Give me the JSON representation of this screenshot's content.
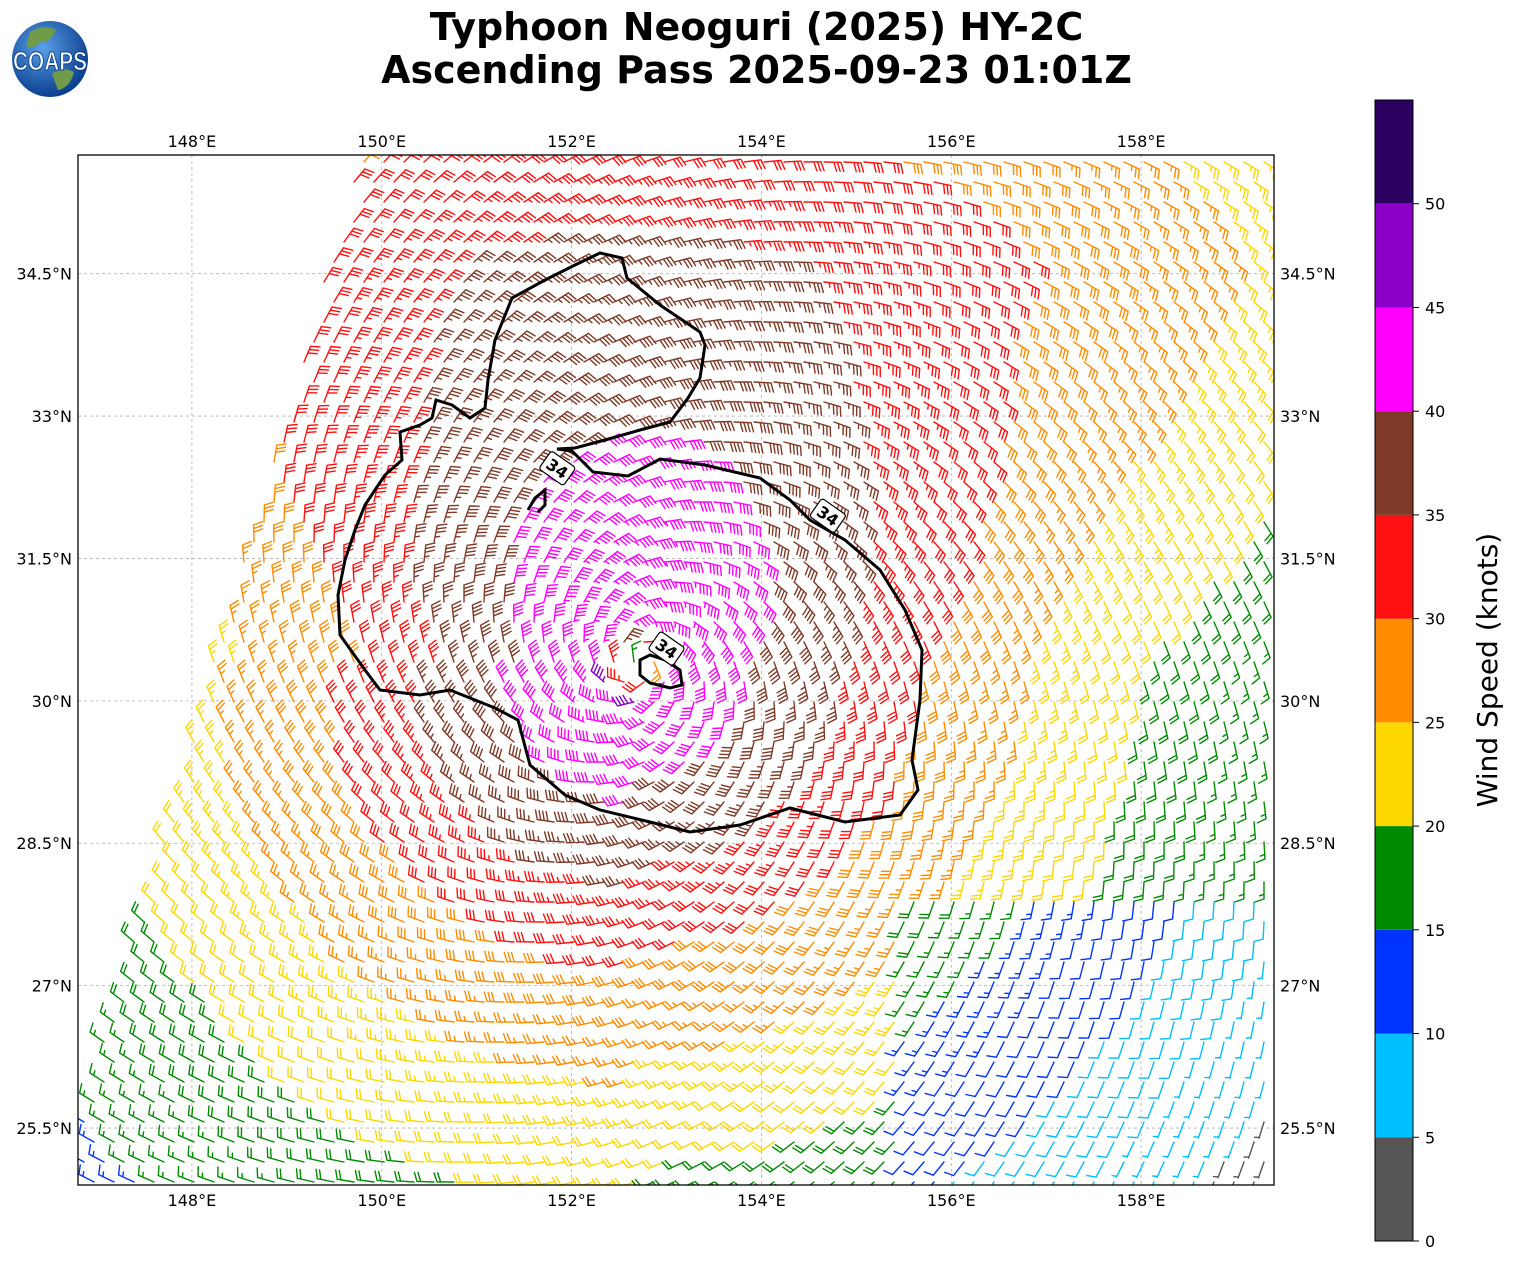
{
  "title_line1": "Typhoon Neoguri (2025) HY-2C",
  "title_line2": "Ascending Pass 2025-09-23 01:01Z",
  "logo_text": "COAPS",
  "map": {
    "lon_range": [
      146.8,
      159.4
    ],
    "lat_range": [
      24.9,
      35.75
    ],
    "lon_ticks": [
      {
        "value": 148,
        "label": "148°E"
      },
      {
        "value": 150,
        "label": "150°E"
      },
      {
        "value": 152,
        "label": "152°E"
      },
      {
        "value": 154,
        "label": "154°E"
      },
      {
        "value": 156,
        "label": "156°E"
      },
      {
        "value": 158,
        "label": "158°E"
      }
    ],
    "lat_ticks": [
      {
        "value": 34.5,
        "label": "34.5°N"
      },
      {
        "value": 33,
        "label": "33°N"
      },
      {
        "value": 31.5,
        "label": "31.5°N"
      },
      {
        "value": 30,
        "label": "30°N"
      },
      {
        "value": 28.5,
        "label": "28.5°N"
      },
      {
        "value": 27,
        "label": "27°N"
      },
      {
        "value": 25.5,
        "label": "25.5°N"
      }
    ],
    "gridlines": true,
    "storm_center": {
      "lon": 152.7,
      "lat": 30.4
    },
    "contour_label": "34",
    "contour_label_positions": [
      {
        "lon": 151.85,
        "lat": 32.45
      },
      {
        "lon": 154.7,
        "lat": 31.95
      },
      {
        "lon": 153.0,
        "lat": 30.55
      }
    ]
  },
  "colorbar": {
    "label": "Wind Speed (knots)",
    "bins": [
      {
        "from": 0,
        "to": 5,
        "color": "#555555"
      },
      {
        "from": 5,
        "to": 10,
        "color": "#00bfff"
      },
      {
        "from": 10,
        "to": 15,
        "color": "#0033ff"
      },
      {
        "from": 15,
        "to": 20,
        "color": "#008b00"
      },
      {
        "from": 20,
        "to": 25,
        "color": "#ffd700"
      },
      {
        "from": 25,
        "to": 30,
        "color": "#ff8c00"
      },
      {
        "from": 30,
        "to": 35,
        "color": "#ff1010"
      },
      {
        "from": 35,
        "to": 40,
        "color": "#7f3a28"
      },
      {
        "from": 40,
        "to": 45,
        "color": "#ff00ff"
      },
      {
        "from": 45,
        "to": 50,
        "color": "#8b00c8"
      },
      {
        "from": 50,
        "to": 55,
        "color": "#2a0060"
      }
    ],
    "tick_labels": [
      "0",
      "5",
      "10",
      "15",
      "20",
      "25",
      "30",
      "35",
      "40",
      "45",
      "50"
    ]
  }
}
